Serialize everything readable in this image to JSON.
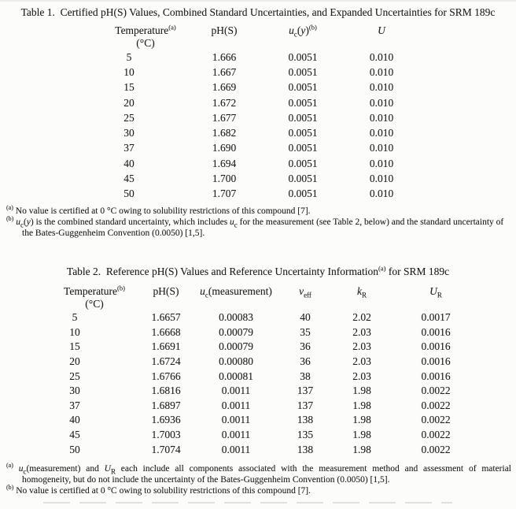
{
  "page": {
    "background": "#fcfcfa",
    "text_color": "#1f1f1f"
  },
  "table1": {
    "title": "Table 1.  Certified pH(S) Values, Combined Standard Uncertainties, and Expanded Uncertainties for SRM 189c",
    "col_headers": {
      "temperature": [
        "Temperature",
        {
          "sup": "(a)"
        }
      ],
      "temperature_unit": "(°C)",
      "ph": [
        "pH(S)"
      ],
      "uc": [
        {
          "i": "u"
        },
        {
          "sub": "c"
        },
        "(",
        {
          "i": "y"
        },
        ")",
        {
          "sup": "(b)"
        }
      ],
      "U": [
        {
          "i": "U"
        }
      ]
    },
    "rows": [
      [
        "5",
        "1.666",
        "0.0051",
        "0.010"
      ],
      [
        "10",
        "1.667",
        "0.0051",
        "0.010"
      ],
      [
        "15",
        "1.669",
        "0.0051",
        "0.010"
      ],
      [
        "20",
        "1.672",
        "0.0051",
        "0.010"
      ],
      [
        "25",
        "1.677",
        "0.0051",
        "0.010"
      ],
      [
        "30",
        "1.682",
        "0.0051",
        "0.010"
      ],
      [
        "37",
        "1.690",
        "0.0051",
        "0.010"
      ],
      [
        "40",
        "1.694",
        "0.0051",
        "0.010"
      ],
      [
        "45",
        "1.700",
        "0.0051",
        "0.010"
      ],
      [
        "50",
        "1.707",
        "0.0051",
        "0.010"
      ]
    ],
    "footnotes": [
      [
        {
          "sup": "(a)"
        },
        " No value is certified at 0 °C owing to solubility restrictions of this compound [7]."
      ],
      [
        {
          "sup": "(b)"
        },
        " ",
        {
          "i": "u"
        },
        {
          "sub": "c"
        },
        "(",
        {
          "i": "y"
        },
        ") is the combined standard uncertainty, which includes ",
        {
          "i": "u"
        },
        {
          "sub": "c"
        },
        " for the measurement (see Table 2, below) and the standard uncertainty of the Bates-Guggenheim Convention (0.0050) [1,5]."
      ]
    ]
  },
  "table2": {
    "title": [
      "Table 2.  Reference pH(S) Values and Reference Uncertainty Information",
      {
        "sup": "(a)"
      },
      " for SRM 189c"
    ],
    "col_headers": {
      "temperature": [
        "Temperature",
        {
          "sup": "(b)"
        }
      ],
      "temperature_unit": "(°C)",
      "ph": [
        "pH(S)"
      ],
      "uc": [
        {
          "i": "u"
        },
        {
          "sub": "c"
        },
        "(measurement)"
      ],
      "veff": [
        {
          "i": "ν"
        },
        {
          "sub": "eff"
        }
      ],
      "kR": [
        {
          "i": "k"
        },
        {
          "sub": "R"
        }
      ],
      "UR": [
        {
          "i": "U"
        },
        {
          "sub": "R"
        }
      ]
    },
    "rows": [
      [
        "5",
        "1.6657",
        "0.00083",
        "40",
        "2.02",
        "0.0017"
      ],
      [
        "10",
        "1.6668",
        "0.00079",
        "35",
        "2.03",
        "0.0016"
      ],
      [
        "15",
        "1.6691",
        "0.00079",
        "36",
        "2.03",
        "0.0016"
      ],
      [
        "20",
        "1.6724",
        "0.00080",
        "36",
        "2.03",
        "0.0016"
      ],
      [
        "25",
        "1.6766",
        "0.00081",
        "38",
        "2.03",
        "0.0016"
      ],
      [
        "30",
        "1.6816",
        "0.0011",
        "137",
        "1.98",
        "0.0022"
      ],
      [
        "37",
        "1.6897",
        "0.0011",
        "137",
        "1.98",
        "0.0022"
      ],
      [
        "40",
        "1.6936",
        "0.0011",
        "138",
        "1.98",
        "0.0022"
      ],
      [
        "45",
        "1.7003",
        "0.0011",
        "135",
        "1.98",
        "0.0022"
      ],
      [
        "50",
        "1.7074",
        "0.0011",
        "138",
        "1.98",
        "0.0022"
      ]
    ],
    "footnotes": [
      [
        {
          "sup": "(a)"
        },
        " ",
        {
          "i": "u"
        },
        {
          "sub": "c"
        },
        "(measurement) and ",
        {
          "i": "U"
        },
        {
          "sub": "R"
        },
        " each include all components associated with the measurement method and assessment of material homogeneity, but do not include the uncertainty of the Bates-Guggenheim Convention (0.0050) [1,5]."
      ],
      [
        {
          "sup": "(b)"
        },
        " No value is certified at 0 °C owing to solubility restrictions of this compound [7]."
      ]
    ]
  }
}
